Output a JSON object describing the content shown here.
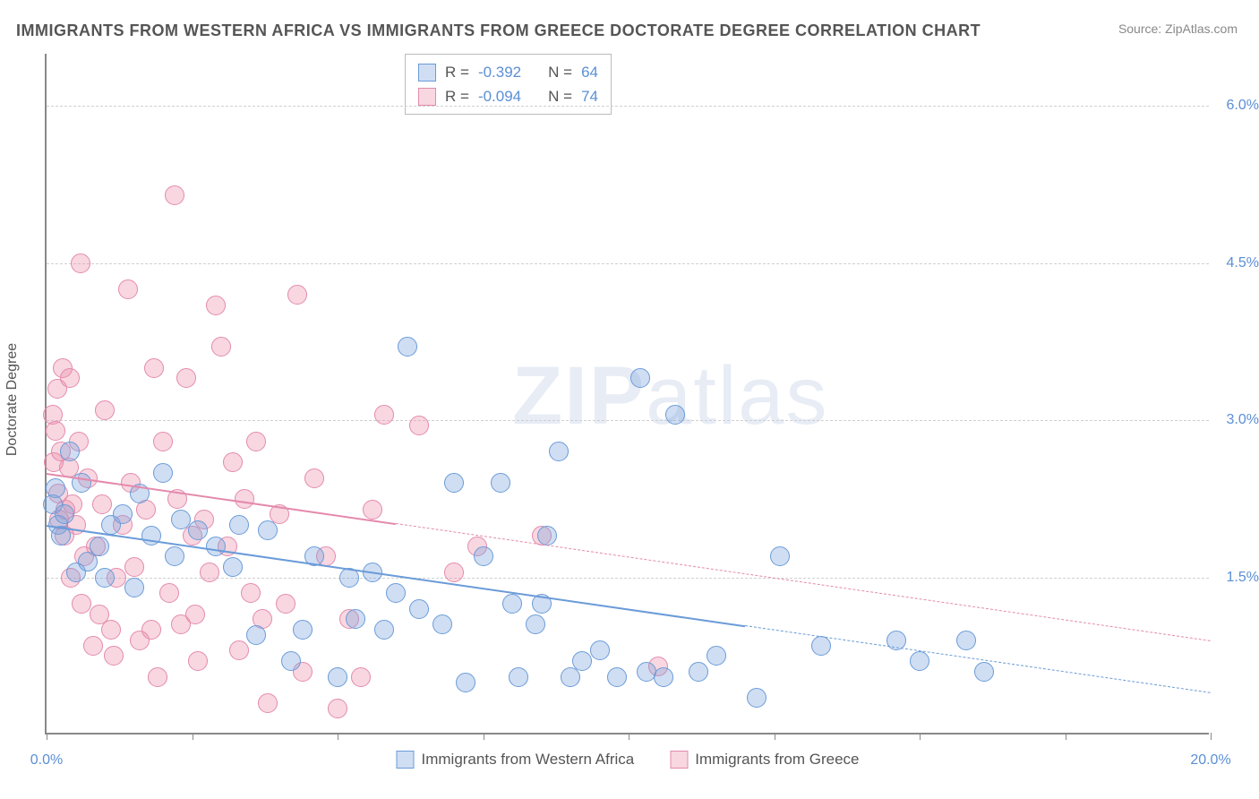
{
  "title": "IMMIGRANTS FROM WESTERN AFRICA VS IMMIGRANTS FROM GREECE DOCTORATE DEGREE CORRELATION CHART",
  "source_label": "Source:",
  "source_name": "ZipAtlas.com",
  "yaxis_title": "Doctorate Degree",
  "watermark": {
    "bold": "ZIP",
    "rest": "atlas"
  },
  "chart": {
    "type": "scatter",
    "xlim": [
      0,
      20
    ],
    "ylim": [
      0,
      6.5
    ],
    "x_ticks": [
      0,
      2.5,
      5,
      7.5,
      10,
      12.5,
      15,
      17.5,
      20
    ],
    "x_tick_labels": {
      "0": "0.0%",
      "20": "20.0%"
    },
    "y_gridlines": [
      1.5,
      3.0,
      4.5,
      6.0
    ],
    "y_tick_labels": {
      "1.5": "1.5%",
      "3.0": "3.0%",
      "4.5": "4.5%",
      "6.0": "6.0%"
    },
    "grid_color": "#d0d0d0",
    "background_color": "#ffffff",
    "axis_color": "#888888",
    "label_color": "#5b8fd6",
    "point_radius": 11,
    "series": [
      {
        "name": "Immigrants from Western Africa",
        "fill": "rgba(120,160,220,0.35)",
        "stroke": "#6a9bd8",
        "R": "-0.392",
        "N": "64",
        "trend": {
          "x1": 0,
          "y1": 2.0,
          "x2": 20,
          "y2": 0.4,
          "solid_until_x": 12
        },
        "points": [
          [
            0.1,
            2.2
          ],
          [
            0.15,
            2.35
          ],
          [
            0.2,
            2.0
          ],
          [
            0.25,
            1.9
          ],
          [
            0.3,
            2.1
          ],
          [
            0.4,
            2.7
          ],
          [
            0.5,
            1.55
          ],
          [
            0.6,
            2.4
          ],
          [
            0.7,
            1.65
          ],
          [
            0.9,
            1.8
          ],
          [
            1.0,
            1.5
          ],
          [
            1.1,
            2.0
          ],
          [
            1.3,
            2.1
          ],
          [
            1.5,
            1.4
          ],
          [
            1.6,
            2.3
          ],
          [
            1.8,
            1.9
          ],
          [
            2.0,
            2.5
          ],
          [
            2.2,
            1.7
          ],
          [
            2.3,
            2.05
          ],
          [
            2.6,
            1.95
          ],
          [
            2.9,
            1.8
          ],
          [
            3.2,
            1.6
          ],
          [
            3.3,
            2.0
          ],
          [
            3.6,
            0.95
          ],
          [
            3.8,
            1.95
          ],
          [
            4.2,
            0.7
          ],
          [
            4.4,
            1.0
          ],
          [
            4.6,
            1.7
          ],
          [
            5.0,
            0.55
          ],
          [
            5.2,
            1.5
          ],
          [
            5.3,
            1.1
          ],
          [
            5.6,
            1.55
          ],
          [
            5.8,
            1.0
          ],
          [
            6.0,
            1.35
          ],
          [
            6.2,
            3.7
          ],
          [
            6.4,
            1.2
          ],
          [
            6.8,
            1.05
          ],
          [
            7.0,
            2.4
          ],
          [
            7.2,
            0.5
          ],
          [
            7.5,
            1.7
          ],
          [
            7.8,
            2.4
          ],
          [
            8.0,
            1.25
          ],
          [
            8.1,
            0.55
          ],
          [
            8.4,
            1.05
          ],
          [
            8.5,
            1.25
          ],
          [
            8.6,
            1.9
          ],
          [
            8.8,
            2.7
          ],
          [
            9.0,
            0.55
          ],
          [
            9.2,
            0.7
          ],
          [
            9.5,
            0.8
          ],
          [
            9.8,
            0.55
          ],
          [
            10.2,
            3.4
          ],
          [
            10.3,
            0.6
          ],
          [
            10.6,
            0.55
          ],
          [
            10.8,
            3.05
          ],
          [
            11.2,
            0.6
          ],
          [
            11.5,
            0.75
          ],
          [
            12.2,
            0.35
          ],
          [
            12.6,
            1.7
          ],
          [
            13.3,
            0.85
          ],
          [
            14.6,
            0.9
          ],
          [
            15.0,
            0.7
          ],
          [
            15.8,
            0.9
          ],
          [
            16.1,
            0.6
          ]
        ]
      },
      {
        "name": "Immigrants from Greece",
        "fill": "rgba(235,140,170,0.35)",
        "stroke": "#e48aac",
        "R": "-0.094",
        "N": "74",
        "trend": {
          "x1": 0,
          "y1": 2.5,
          "x2": 20,
          "y2": 0.9,
          "solid_until_x": 6
        },
        "points": [
          [
            0.1,
            3.05
          ],
          [
            0.12,
            2.6
          ],
          [
            0.15,
            2.9
          ],
          [
            0.18,
            3.3
          ],
          [
            0.2,
            2.3
          ],
          [
            0.22,
            2.05
          ],
          [
            0.25,
            2.7
          ],
          [
            0.28,
            3.5
          ],
          [
            0.3,
            1.9
          ],
          [
            0.32,
            2.15
          ],
          [
            0.38,
            2.55
          ],
          [
            0.4,
            3.4
          ],
          [
            0.42,
            1.5
          ],
          [
            0.45,
            2.2
          ],
          [
            0.5,
            2.0
          ],
          [
            0.55,
            2.8
          ],
          [
            0.58,
            4.5
          ],
          [
            0.6,
            1.25
          ],
          [
            0.65,
            1.7
          ],
          [
            0.7,
            2.45
          ],
          [
            0.8,
            0.85
          ],
          [
            0.85,
            1.8
          ],
          [
            0.9,
            1.15
          ],
          [
            0.95,
            2.2
          ],
          [
            1.0,
            3.1
          ],
          [
            1.1,
            1.0
          ],
          [
            1.15,
            0.75
          ],
          [
            1.2,
            1.5
          ],
          [
            1.3,
            2.0
          ],
          [
            1.4,
            4.25
          ],
          [
            1.45,
            2.4
          ],
          [
            1.5,
            1.6
          ],
          [
            1.6,
            0.9
          ],
          [
            1.7,
            2.15
          ],
          [
            1.8,
            1.0
          ],
          [
            1.85,
            3.5
          ],
          [
            1.9,
            0.55
          ],
          [
            2.0,
            2.8
          ],
          [
            2.1,
            1.35
          ],
          [
            2.2,
            5.15
          ],
          [
            2.25,
            2.25
          ],
          [
            2.3,
            1.05
          ],
          [
            2.4,
            3.4
          ],
          [
            2.5,
            1.9
          ],
          [
            2.55,
            1.15
          ],
          [
            2.6,
            0.7
          ],
          [
            2.7,
            2.05
          ],
          [
            2.8,
            1.55
          ],
          [
            2.9,
            4.1
          ],
          [
            3.0,
            3.7
          ],
          [
            3.1,
            1.8
          ],
          [
            3.2,
            2.6
          ],
          [
            3.3,
            0.8
          ],
          [
            3.4,
            2.25
          ],
          [
            3.5,
            1.35
          ],
          [
            3.6,
            2.8
          ],
          [
            3.7,
            1.1
          ],
          [
            3.8,
            0.3
          ],
          [
            4.0,
            2.1
          ],
          [
            4.1,
            1.25
          ],
          [
            4.3,
            4.2
          ],
          [
            4.4,
            0.6
          ],
          [
            4.6,
            2.45
          ],
          [
            4.8,
            1.7
          ],
          [
            5.0,
            0.25
          ],
          [
            5.2,
            1.1
          ],
          [
            5.4,
            0.55
          ],
          [
            5.6,
            2.15
          ],
          [
            5.8,
            3.05
          ],
          [
            6.4,
            2.95
          ],
          [
            7.0,
            1.55
          ],
          [
            7.4,
            1.8
          ],
          [
            8.5,
            1.9
          ],
          [
            10.5,
            0.65
          ]
        ]
      }
    ]
  },
  "legend_top": {
    "R_label": "R =",
    "N_label": "N ="
  }
}
